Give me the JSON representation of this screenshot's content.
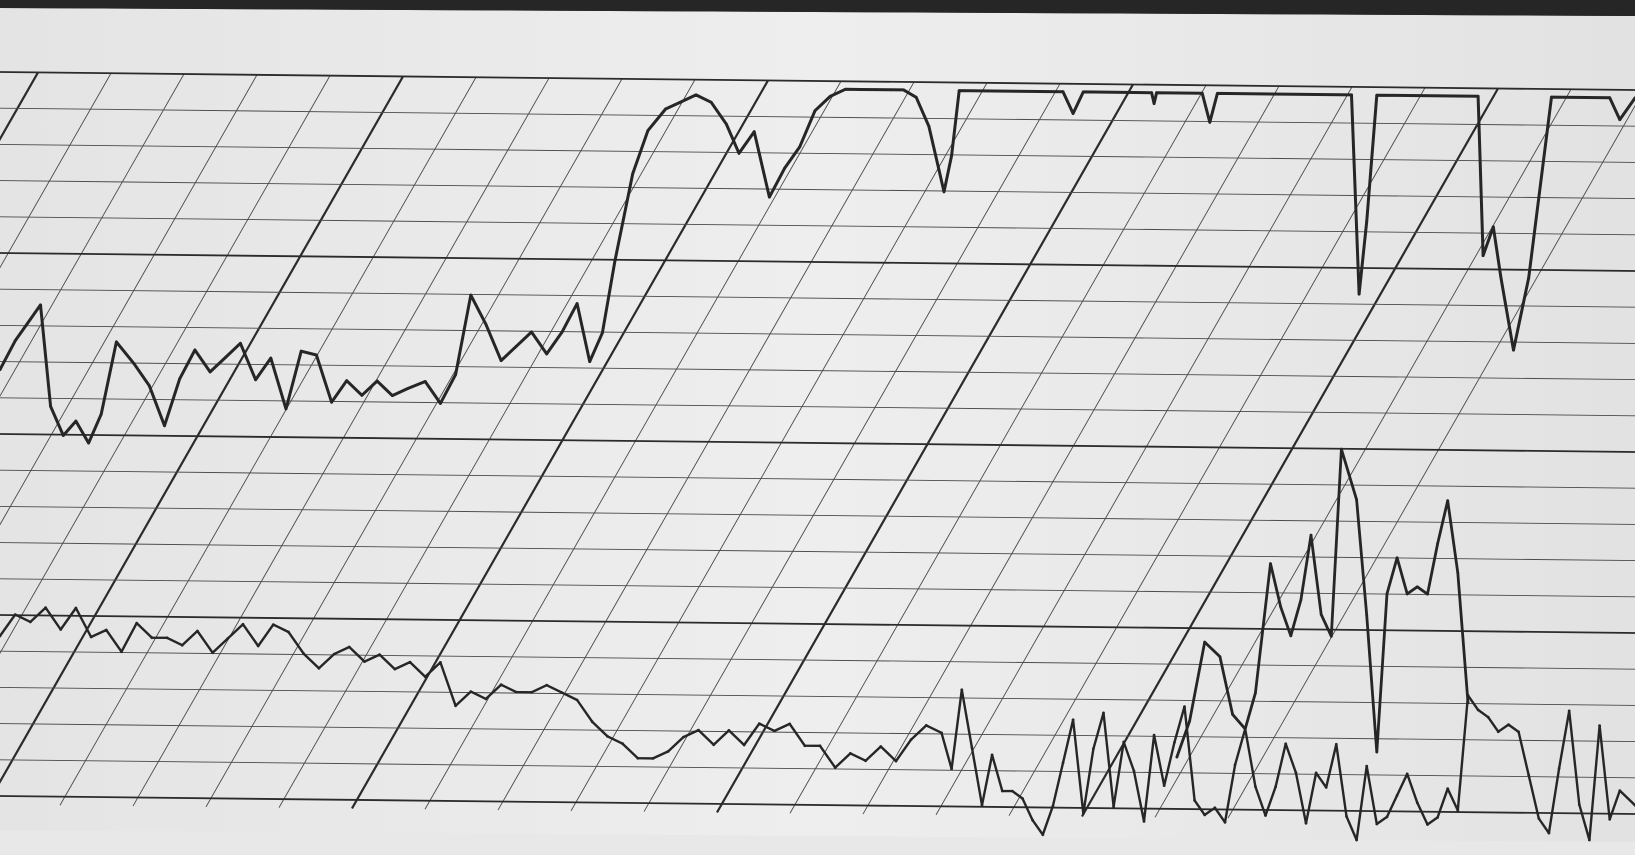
{
  "chart_data": {
    "type": "line",
    "title": "",
    "xlabel": "",
    "ylabel": "",
    "grid": true,
    "colors": {
      "paper": "#ececec",
      "paper_shadow": "#d9d9d9",
      "frame": "#1e1e1e",
      "grid_major": "#2b2b2b",
      "grid_minor": "#4a4a4a",
      "trace": "#262626"
    },
    "grid_divisions": {
      "x_major": 4,
      "x_minor_per_major": 5,
      "y_major": 4,
      "y_minor_per_major": 5
    },
    "channels": [
      {
        "channel": "upper",
        "points": [
          [
            0.0,
            12.0
          ],
          [
            0.6,
            12.8
          ],
          [
            1.2,
            13.4
          ],
          [
            1.6,
            13.8
          ],
          [
            2.0,
            11.0
          ],
          [
            2.5,
            10.2
          ],
          [
            3.0,
            10.6
          ],
          [
            3.5,
            10.0
          ],
          [
            4.0,
            10.8
          ],
          [
            4.6,
            12.8
          ],
          [
            5.3,
            12.2
          ],
          [
            5.9,
            11.6
          ],
          [
            6.5,
            10.5
          ],
          [
            7.1,
            11.8
          ],
          [
            7.7,
            12.6
          ],
          [
            8.3,
            12.0
          ],
          [
            8.9,
            12.4
          ],
          [
            9.5,
            12.8
          ],
          [
            10.1,
            11.8
          ],
          [
            10.7,
            12.4
          ],
          [
            11.3,
            11.0
          ],
          [
            11.9,
            12.6
          ],
          [
            12.5,
            12.5
          ],
          [
            13.1,
            11.2
          ],
          [
            13.7,
            11.8
          ],
          [
            14.3,
            11.4
          ],
          [
            14.9,
            11.8
          ],
          [
            15.5,
            11.4
          ],
          [
            16.1,
            11.6
          ],
          [
            16.8,
            11.8
          ],
          [
            17.4,
            11.2
          ],
          [
            18.0,
            12.0
          ],
          [
            18.6,
            14.2
          ],
          [
            19.2,
            13.4
          ],
          [
            19.8,
            12.4
          ],
          [
            20.4,
            12.8
          ],
          [
            21.0,
            13.2
          ],
          [
            21.6,
            12.6
          ],
          [
            22.2,
            13.2
          ],
          [
            22.8,
            14.0
          ],
          [
            23.3,
            12.4
          ],
          [
            23.8,
            13.2
          ],
          [
            24.3,
            15.2
          ],
          [
            25.0,
            17.6
          ],
          [
            25.6,
            18.8
          ],
          [
            26.3,
            19.4
          ],
          [
            26.9,
            19.6
          ],
          [
            27.5,
            19.8
          ],
          [
            28.1,
            19.6
          ],
          [
            28.7,
            19.0
          ],
          [
            29.2,
            18.2
          ],
          [
            29.8,
            18.8
          ],
          [
            30.4,
            17.0
          ],
          [
            31.0,
            17.8
          ],
          [
            31.6,
            18.4
          ],
          [
            32.2,
            19.4
          ],
          [
            32.8,
            19.8
          ],
          [
            33.4,
            20.0
          ],
          [
            34.0,
            20.0
          ],
          [
            34.6,
            20.0
          ],
          [
            35.2,
            20.0
          ],
          [
            35.7,
            20.0
          ],
          [
            36.2,
            19.8
          ],
          [
            36.7,
            19.0
          ],
          [
            37.1,
            17.8
          ],
          [
            37.3,
            17.2
          ],
          [
            37.6,
            18.2
          ],
          [
            37.9,
            20.0
          ],
          [
            42.0,
            20.0
          ],
          [
            42.4,
            19.4
          ],
          [
            42.8,
            20.0
          ],
          [
            45.5,
            20.0
          ],
          [
            45.6,
            19.7
          ],
          [
            45.7,
            20.0
          ],
          [
            47.5,
            20.0
          ],
          [
            47.8,
            19.2
          ],
          [
            48.1,
            20.0
          ],
          [
            53.4,
            20.0
          ],
          [
            53.7,
            14.5
          ],
          [
            54.0,
            16.5
          ],
          [
            54.4,
            20.0
          ],
          [
            58.4,
            20.0
          ],
          [
            58.6,
            15.6
          ],
          [
            59.0,
            16.4
          ],
          [
            59.3,
            15.0
          ],
          [
            59.8,
            13.0
          ],
          [
            60.4,
            15.0
          ],
          [
            61.3,
            20.0
          ],
          [
            63.6,
            20.0
          ],
          [
            64.0,
            19.4
          ],
          [
            64.6,
            20.0
          ]
        ]
      },
      {
        "channel": "lower",
        "points": [
          [
            0.0,
            1.0
          ],
          [
            0.6,
            1.6
          ],
          [
            1.2,
            1.4
          ],
          [
            1.8,
            1.8
          ],
          [
            2.4,
            1.2
          ],
          [
            3.0,
            1.8
          ],
          [
            3.6,
            1.0
          ],
          [
            4.2,
            1.2
          ],
          [
            4.8,
            0.6
          ],
          [
            5.4,
            1.4
          ],
          [
            6.0,
            1.0
          ],
          [
            6.6,
            1.0
          ],
          [
            7.2,
            0.8
          ],
          [
            7.8,
            1.2
          ],
          [
            8.4,
            0.6
          ],
          [
            9.0,
            1.0
          ],
          [
            9.6,
            1.4
          ],
          [
            10.2,
            0.8
          ],
          [
            10.8,
            1.4
          ],
          [
            11.4,
            1.2
          ],
          [
            12.0,
            0.6
          ],
          [
            12.6,
            0.2
          ],
          [
            13.2,
            0.6
          ],
          [
            13.8,
            0.8
          ],
          [
            14.4,
            0.4
          ],
          [
            15.0,
            0.6
          ],
          [
            15.6,
            0.2
          ],
          [
            16.2,
            0.4
          ],
          [
            16.8,
            0.0
          ],
          [
            17.4,
            0.4
          ],
          [
            18.0,
            -0.8
          ],
          [
            18.6,
            -0.4
          ],
          [
            19.2,
            -0.6
          ],
          [
            19.8,
            -0.2
          ],
          [
            20.4,
            -0.4
          ],
          [
            21.0,
            -0.4
          ],
          [
            21.6,
            -0.2
          ],
          [
            22.2,
            -0.4
          ],
          [
            22.8,
            -0.6
          ],
          [
            23.4,
            -1.2
          ],
          [
            24.0,
            -1.6
          ],
          [
            24.6,
            -1.8
          ],
          [
            25.2,
            -2.2
          ],
          [
            25.8,
            -2.2
          ],
          [
            26.4,
            -2.0
          ],
          [
            27.0,
            -1.6
          ],
          [
            27.6,
            -1.4
          ],
          [
            28.2,
            -1.8
          ],
          [
            28.8,
            -1.4
          ],
          [
            29.4,
            -1.8
          ],
          [
            30.0,
            -1.2
          ],
          [
            30.6,
            -1.4
          ],
          [
            31.2,
            -1.2
          ],
          [
            31.8,
            -1.8
          ],
          [
            32.4,
            -1.8
          ],
          [
            33.0,
            -2.4
          ],
          [
            33.6,
            -2.0
          ],
          [
            34.2,
            -2.2
          ],
          [
            34.8,
            -1.8
          ],
          [
            35.4,
            -2.2
          ],
          [
            36.0,
            -1.6
          ],
          [
            36.6,
            -1.2
          ],
          [
            37.2,
            -1.4
          ],
          [
            37.6,
            -2.4
          ],
          [
            38.0,
            -0.2
          ],
          [
            38.4,
            -1.8
          ],
          [
            38.8,
            -3.4
          ],
          [
            39.2,
            -2.0
          ],
          [
            39.6,
            -3.0
          ],
          [
            40.0,
            -3.0
          ],
          [
            40.4,
            -3.2
          ],
          [
            40.8,
            -3.8
          ],
          [
            41.2,
            -4.2
          ],
          [
            41.6,
            -3.4
          ],
          [
            42.0,
            -2.2
          ],
          [
            42.4,
            -1.0
          ],
          [
            42.8,
            -3.6
          ],
          [
            43.2,
            -1.8
          ],
          [
            43.6,
            -0.8
          ],
          [
            44.0,
            -3.4
          ],
          [
            44.4,
            -1.6
          ],
          [
            44.8,
            -2.4
          ],
          [
            45.2,
            -3.8
          ],
          [
            45.6,
            -1.4
          ],
          [
            46.0,
            -2.8
          ],
          [
            46.4,
            -1.6
          ],
          [
            46.8,
            -0.6
          ],
          [
            47.2,
            -3.2
          ],
          [
            47.6,
            -3.6
          ],
          [
            48.0,
            -3.4
          ],
          [
            48.4,
            -3.8
          ],
          [
            48.8,
            -2.2
          ],
          [
            49.2,
            -1.2
          ],
          [
            49.6,
            -2.8
          ],
          [
            50.0,
            -3.6
          ],
          [
            50.4,
            -2.8
          ],
          [
            50.8,
            -1.6
          ],
          [
            51.2,
            -2.4
          ],
          [
            51.6,
            -3.8
          ],
          [
            52.0,
            -2.4
          ],
          [
            52.4,
            -2.8
          ],
          [
            52.8,
            -1.6
          ],
          [
            53.2,
            -3.6
          ],
          [
            53.6,
            -4.4
          ],
          [
            54.0,
            -2.2
          ],
          [
            54.4,
            -3.8
          ],
          [
            54.8,
            -3.6
          ],
          [
            55.2,
            -3.0
          ],
          [
            55.6,
            -2.4
          ],
          [
            56.0,
            -3.2
          ],
          [
            56.4,
            -3.8
          ],
          [
            56.8,
            -3.6
          ],
          [
            57.2,
            -2.8
          ],
          [
            57.6,
            -3.4
          ],
          [
            58.0,
            -0.2
          ],
          [
            58.4,
            -0.6
          ],
          [
            58.8,
            -0.8
          ],
          [
            59.2,
            -1.2
          ],
          [
            59.6,
            -1.0
          ],
          [
            60.0,
            -1.2
          ],
          [
            60.4,
            -2.4
          ],
          [
            60.8,
            -3.6
          ],
          [
            61.2,
            -4.0
          ],
          [
            61.6,
            -2.2
          ],
          [
            62.0,
            -0.6
          ],
          [
            62.4,
            -3.2
          ],
          [
            62.8,
            -4.2
          ],
          [
            63.2,
            -1.0
          ],
          [
            63.6,
            -3.6
          ],
          [
            64.0,
            -2.8
          ],
          [
            64.6,
            -3.2
          ]
        ]
      },
      {
        "channel": "lower_excursion",
        "points": [
          [
            46.5,
            -2.0
          ],
          [
            47.0,
            -1.0
          ],
          [
            47.6,
            1.2
          ],
          [
            48.2,
            0.8
          ],
          [
            48.7,
            -0.8
          ],
          [
            49.2,
            -1.2
          ],
          [
            49.6,
            -0.2
          ],
          [
            50.2,
            3.4
          ],
          [
            50.6,
            2.2
          ],
          [
            51.0,
            1.4
          ],
          [
            51.4,
            2.4
          ],
          [
            51.8,
            4.2
          ],
          [
            52.2,
            2.0
          ],
          [
            52.6,
            1.4
          ],
          [
            53.0,
            6.6
          ],
          [
            53.6,
            5.2
          ],
          [
            54.0,
            2.0
          ],
          [
            54.4,
            -1.8
          ],
          [
            54.8,
            2.6
          ],
          [
            55.2,
            3.6
          ],
          [
            55.6,
            2.6
          ],
          [
            56.0,
            2.8
          ],
          [
            56.4,
            2.6
          ],
          [
            56.8,
            4.0
          ],
          [
            57.2,
            5.2
          ],
          [
            57.6,
            3.2
          ],
          [
            58.0,
            -0.4
          ]
        ]
      }
    ]
  }
}
